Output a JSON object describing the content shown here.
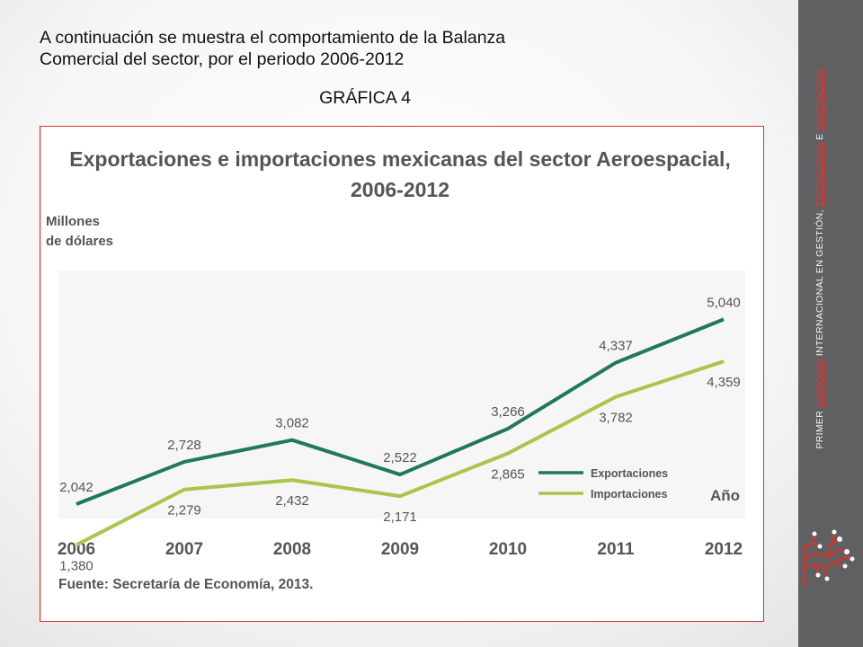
{
  "slide": {
    "intro_line1": "A continuación se muestra el comportamiento de la Balanza",
    "intro_line2": "Comercial del sector, por el periodo 2006-2012",
    "subtitle": "GRÁFICA 4"
  },
  "sidebar": {
    "part1": "PRIMER ",
    "part2": "SIMPOSIO",
    "part3": " INTERNACIONAL EN GESTIÓN, ",
    "part4": "TECNOLOGÍA",
    "part5": " E ",
    "part6": "INNOVACIÓN"
  },
  "chart_data": {
    "type": "line",
    "title_line1": "Exportaciones e importaciones mexicanas del sector Aeroespacial,",
    "title_line2": "2006-2012",
    "ylabel_line1": "Millones",
    "ylabel_line2": "de dólares",
    "xlabel": "Año",
    "categories": [
      "2006",
      "2007",
      "2008",
      "2009",
      "2010",
      "2011",
      "2012"
    ],
    "series": [
      {
        "name": "Exportaciones",
        "color": "#1f7a55",
        "values": [
          2042,
          2728,
          3082,
          2522,
          3266,
          4337,
          5040
        ],
        "labels": [
          "2,042",
          "2,728",
          "3,082",
          "2,522",
          "3,266",
          "4,337",
          "5,040"
        ]
      },
      {
        "name": "Importaciones",
        "color": "#a8c64a",
        "values": [
          1380,
          2279,
          2432,
          2171,
          2865,
          3782,
          4359
        ],
        "labels": [
          "1,380",
          "2,279",
          "2,432",
          "2,171",
          "2,865",
          "3,782",
          "4,359"
        ]
      }
    ],
    "ylim": [
      0,
      7000
    ],
    "source": "Fuente: Secretaría de Economía, 2013.",
    "legend_position": "bottom-right",
    "grid": false
  }
}
